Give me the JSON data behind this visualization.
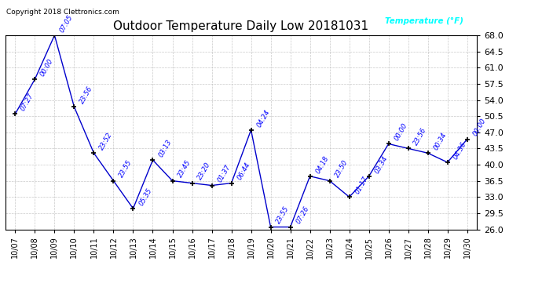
{
  "title": "Outdoor Temperature Daily Low 20181031",
  "copyright": "Copyright 2018 Clettronics.com",
  "legend_label": "Temperature (°F)",
  "background_color": "#ffffff",
  "plot_bg_color": "#ffffff",
  "grid_color": "#bbbbbb",
  "line_color": "#0000cc",
  "marker_color": "#000000",
  "label_color": "#0000ff",
  "dates": [
    "10/07",
    "10/08",
    "10/09",
    "10/10",
    "10/11",
    "10/12",
    "10/13",
    "10/14",
    "10/15",
    "10/16",
    "10/17",
    "10/18",
    "10/19",
    "10/20",
    "10/21",
    "10/22",
    "10/23",
    "10/24",
    "10/25",
    "10/26",
    "10/27",
    "10/28",
    "10/29",
    "10/30"
  ],
  "temps": [
    51.0,
    58.5,
    68.0,
    52.5,
    42.5,
    36.5,
    30.5,
    41.0,
    36.5,
    36.0,
    35.5,
    36.0,
    47.5,
    26.5,
    26.5,
    37.5,
    36.5,
    33.0,
    37.5,
    44.5,
    43.5,
    42.5,
    40.5,
    45.5
  ],
  "time_labels": [
    "07:27",
    "00:00",
    "07:05",
    "23:56",
    "23:52",
    "23:55",
    "05:35",
    "03:13",
    "23:45",
    "23:20",
    "01:37",
    "06:44",
    "04:24",
    "23:55",
    "07:26",
    "04:18",
    "23:50",
    "01:17",
    "03:34",
    "00:00",
    "23:56",
    "00:34",
    "04:36",
    "00:00"
  ],
  "ylim": [
    26.0,
    68.0
  ],
  "yticks": [
    26.0,
    29.5,
    33.0,
    36.5,
    40.0,
    43.5,
    47.0,
    50.5,
    54.0,
    57.5,
    61.0,
    64.5,
    68.0
  ]
}
